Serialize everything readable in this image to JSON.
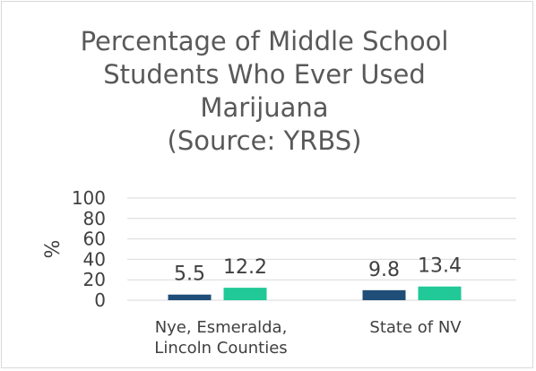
{
  "chart_data": {
    "type": "bar",
    "title_lines": [
      "Percentage of Middle School",
      "Students Who Ever Used",
      "Marijuana",
      "(Source: YRBS)"
    ],
    "ylabel": "%",
    "ylim": [
      0,
      100
    ],
    "yticks": [
      "0",
      "20",
      "40",
      "60",
      "80",
      "100"
    ],
    "grid": true,
    "categories": [
      {
        "lines": [
          "Nye, Esmeralda,",
          "Lincoln Counties"
        ]
      },
      {
        "lines": [
          "State of NV"
        ]
      }
    ],
    "series": [
      {
        "values": [
          5.5,
          9.8
        ],
        "labels": [
          "5.5",
          "9.8"
        ],
        "color": "#1f4e79"
      },
      {
        "values": [
          12.2,
          13.4
        ],
        "labels": [
          "12.2",
          "13.4"
        ],
        "color": "#20c997"
      }
    ]
  }
}
